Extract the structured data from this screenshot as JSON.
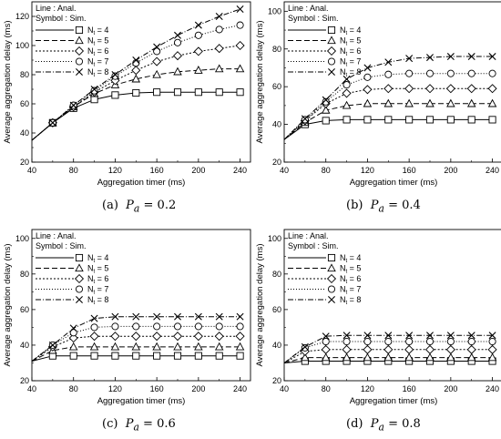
{
  "chart_data": [
    {
      "type": "line",
      "caption_label": "(a)",
      "caption_var": "P",
      "caption_sub": "a",
      "caption_value": " = 0.2",
      "xlabel": "Aggregation timer (ms)",
      "ylabel": "Average aggregation delay (ms)",
      "xlim": [
        40,
        250
      ],
      "ylim": [
        20,
        130
      ],
      "xticks": [
        40,
        80,
        120,
        160,
        200,
        240
      ],
      "yticks": [
        20,
        40,
        60,
        80,
        100,
        120
      ],
      "legend_title": [
        "Line : Anal.",
        "Symbol : Sim."
      ],
      "legend_position": "top-left",
      "x": [
        40,
        60,
        80,
        100,
        120,
        140,
        160,
        180,
        200,
        220,
        240
      ],
      "series": [
        {
          "name": "N = 4",
          "sub": "t",
          "symbol": "square",
          "dash": "",
          "values": [
            35,
            47,
            57,
            63,
            66,
            67.5,
            68,
            68,
            68,
            68,
            68
          ]
        },
        {
          "name": "N = 5",
          "sub": "t",
          "symbol": "triangle",
          "dash": "6,3",
          "values": [
            35,
            47,
            58,
            67,
            73,
            77,
            80,
            82,
            83,
            84,
            84
          ]
        },
        {
          "name": "N = 6",
          "sub": "t",
          "symbol": "diamond",
          "dash": "2,2",
          "values": [
            35,
            47,
            58,
            68,
            76,
            83,
            89,
            93,
            96,
            98,
            100
          ]
        },
        {
          "name": "N = 7",
          "sub": "t",
          "symbol": "circle",
          "dash": "1,2",
          "values": [
            35,
            47,
            59,
            69,
            79,
            88,
            96,
            102,
            107,
            111,
            114
          ]
        },
        {
          "name": "N = 8",
          "sub": "t",
          "symbol": "x",
          "dash": "6,2,1,2",
          "values": [
            35,
            47,
            59,
            70,
            80,
            90,
            99,
            107,
            114,
            120,
            125
          ]
        }
      ]
    },
    {
      "type": "line",
      "caption_label": "(b)",
      "caption_var": "P",
      "caption_sub": "a",
      "caption_value": " = 0.4",
      "xlabel": "Aggregation timer (ms)",
      "ylabel": "Average aggregation delay (ms)",
      "xlim": [
        40,
        250
      ],
      "ylim": [
        20,
        105
      ],
      "xticks": [
        40,
        80,
        120,
        160,
        200,
        240
      ],
      "yticks": [
        20,
        40,
        60,
        80,
        100
      ],
      "legend_title": [
        "Line : Anal.",
        "Symbol : Sim."
      ],
      "legend_position": "top-left",
      "x": [
        40,
        60,
        80,
        100,
        120,
        140,
        160,
        180,
        200,
        220,
        240
      ],
      "series": [
        {
          "name": "N = 4",
          "sub": "t",
          "symbol": "square",
          "dash": "",
          "values": [
            32,
            40,
            42,
            42.5,
            42.5,
            42.5,
            42.5,
            42.5,
            42.5,
            42.5,
            42.5
          ]
        },
        {
          "name": "N = 5",
          "sub": "t",
          "symbol": "triangle",
          "dash": "6,3",
          "values": [
            32,
            41,
            47.5,
            50,
            51,
            51,
            51,
            51,
            51,
            51,
            51
          ]
        },
        {
          "name": "N = 6",
          "sub": "t",
          "symbol": "diamond",
          "dash": "2,2",
          "values": [
            32,
            42,
            51,
            56.5,
            58.5,
            59,
            59,
            59,
            59,
            59,
            59
          ]
        },
        {
          "name": "N = 7",
          "sub": "t",
          "symbol": "circle",
          "dash": "1,2",
          "values": [
            32,
            42.5,
            52,
            61,
            65,
            66.5,
            67,
            67,
            67,
            67,
            67
          ]
        },
        {
          "name": "N = 8",
          "sub": "t",
          "symbol": "x",
          "dash": "6,2,1,2",
          "values": [
            32,
            43,
            53,
            64,
            70,
            73,
            75,
            75.5,
            76,
            76,
            76
          ]
        }
      ]
    },
    {
      "type": "line",
      "caption_label": "(c)",
      "caption_var": "P",
      "caption_sub": "a",
      "caption_value": " = 0.6",
      "xlabel": "Aggregation timer (ms)",
      "ylabel": "Average aggregation delay (ms)",
      "xlim": [
        40,
        250
      ],
      "ylim": [
        20,
        105
      ],
      "xticks": [
        40,
        80,
        120,
        160,
        200,
        240
      ],
      "yticks": [
        20,
        40,
        60,
        80,
        100
      ],
      "legend_title": [
        "Line : Anal.",
        "Symbol : Sim."
      ],
      "legend_position": "top-left",
      "x": [
        40,
        60,
        80,
        100,
        120,
        140,
        160,
        180,
        200,
        220,
        240
      ],
      "series": [
        {
          "name": "N = 4",
          "sub": "t",
          "symbol": "square",
          "dash": "",
          "values": [
            31,
            34,
            34,
            34,
            34,
            34,
            34,
            34,
            34,
            34,
            34
          ]
        },
        {
          "name": "N = 5",
          "sub": "t",
          "symbol": "triangle",
          "dash": "6,3",
          "values": [
            31,
            37,
            39,
            39,
            39,
            39,
            39,
            39,
            39,
            39,
            39
          ]
        },
        {
          "name": "N = 6",
          "sub": "t",
          "symbol": "diamond",
          "dash": "2,2",
          "values": [
            31,
            39,
            44,
            45,
            45,
            45,
            45,
            45,
            45,
            45,
            45
          ]
        },
        {
          "name": "N = 7",
          "sub": "t",
          "symbol": "circle",
          "dash": "1,2",
          "values": [
            31,
            40,
            47,
            50,
            50.5,
            50.5,
            50.5,
            50.5,
            50.5,
            50.5,
            50.5
          ]
        },
        {
          "name": "N = 8",
          "sub": "t",
          "symbol": "x",
          "dash": "6,2,1,2",
          "values": [
            31,
            40,
            49.5,
            55,
            56,
            56,
            56,
            56,
            56,
            56,
            56
          ]
        }
      ]
    },
    {
      "type": "line",
      "caption_label": "(d)",
      "caption_var": "P",
      "caption_sub": "a",
      "caption_value": " = 0.8",
      "xlabel": "Aggregation timer (ms)",
      "ylabel": "Average aggregation delay (ms)",
      "xlim": [
        40,
        250
      ],
      "ylim": [
        20,
        105
      ],
      "xticks": [
        40,
        80,
        120,
        160,
        200,
        240
      ],
      "yticks": [
        20,
        40,
        60,
        80,
        100
      ],
      "legend_title": [
        "Line : Anal.",
        "Symbol : Sim."
      ],
      "legend_position": "top-left",
      "x": [
        40,
        60,
        80,
        100,
        120,
        140,
        160,
        180,
        200,
        220,
        240
      ],
      "series": [
        {
          "name": "N = 4",
          "sub": "t",
          "symbol": "square",
          "dash": "",
          "values": [
            30,
            31,
            31,
            31,
            31,
            31,
            31,
            31,
            31,
            31,
            31
          ]
        },
        {
          "name": "N = 5",
          "sub": "t",
          "symbol": "triangle",
          "dash": "6,3",
          "values": [
            30,
            33,
            33,
            33,
            33,
            33,
            33,
            33,
            33,
            33,
            33
          ]
        },
        {
          "name": "N = 6",
          "sub": "t",
          "symbol": "diamond",
          "dash": "2,2",
          "values": [
            30,
            36.5,
            37.5,
            37.5,
            37.5,
            37.5,
            37.5,
            37.5,
            37.5,
            37.5,
            37.5
          ]
        },
        {
          "name": "N = 7",
          "sub": "t",
          "symbol": "circle",
          "dash": "1,2",
          "values": [
            30,
            38.5,
            42,
            42,
            42,
            42,
            42,
            42,
            42,
            42,
            42
          ]
        },
        {
          "name": "N = 8",
          "sub": "t",
          "symbol": "x",
          "dash": "6,2,1,2",
          "values": [
            30,
            39,
            45,
            45.5,
            45.5,
            45.5,
            45.5,
            45.5,
            45.5,
            45.5,
            45.5
          ]
        }
      ]
    }
  ]
}
